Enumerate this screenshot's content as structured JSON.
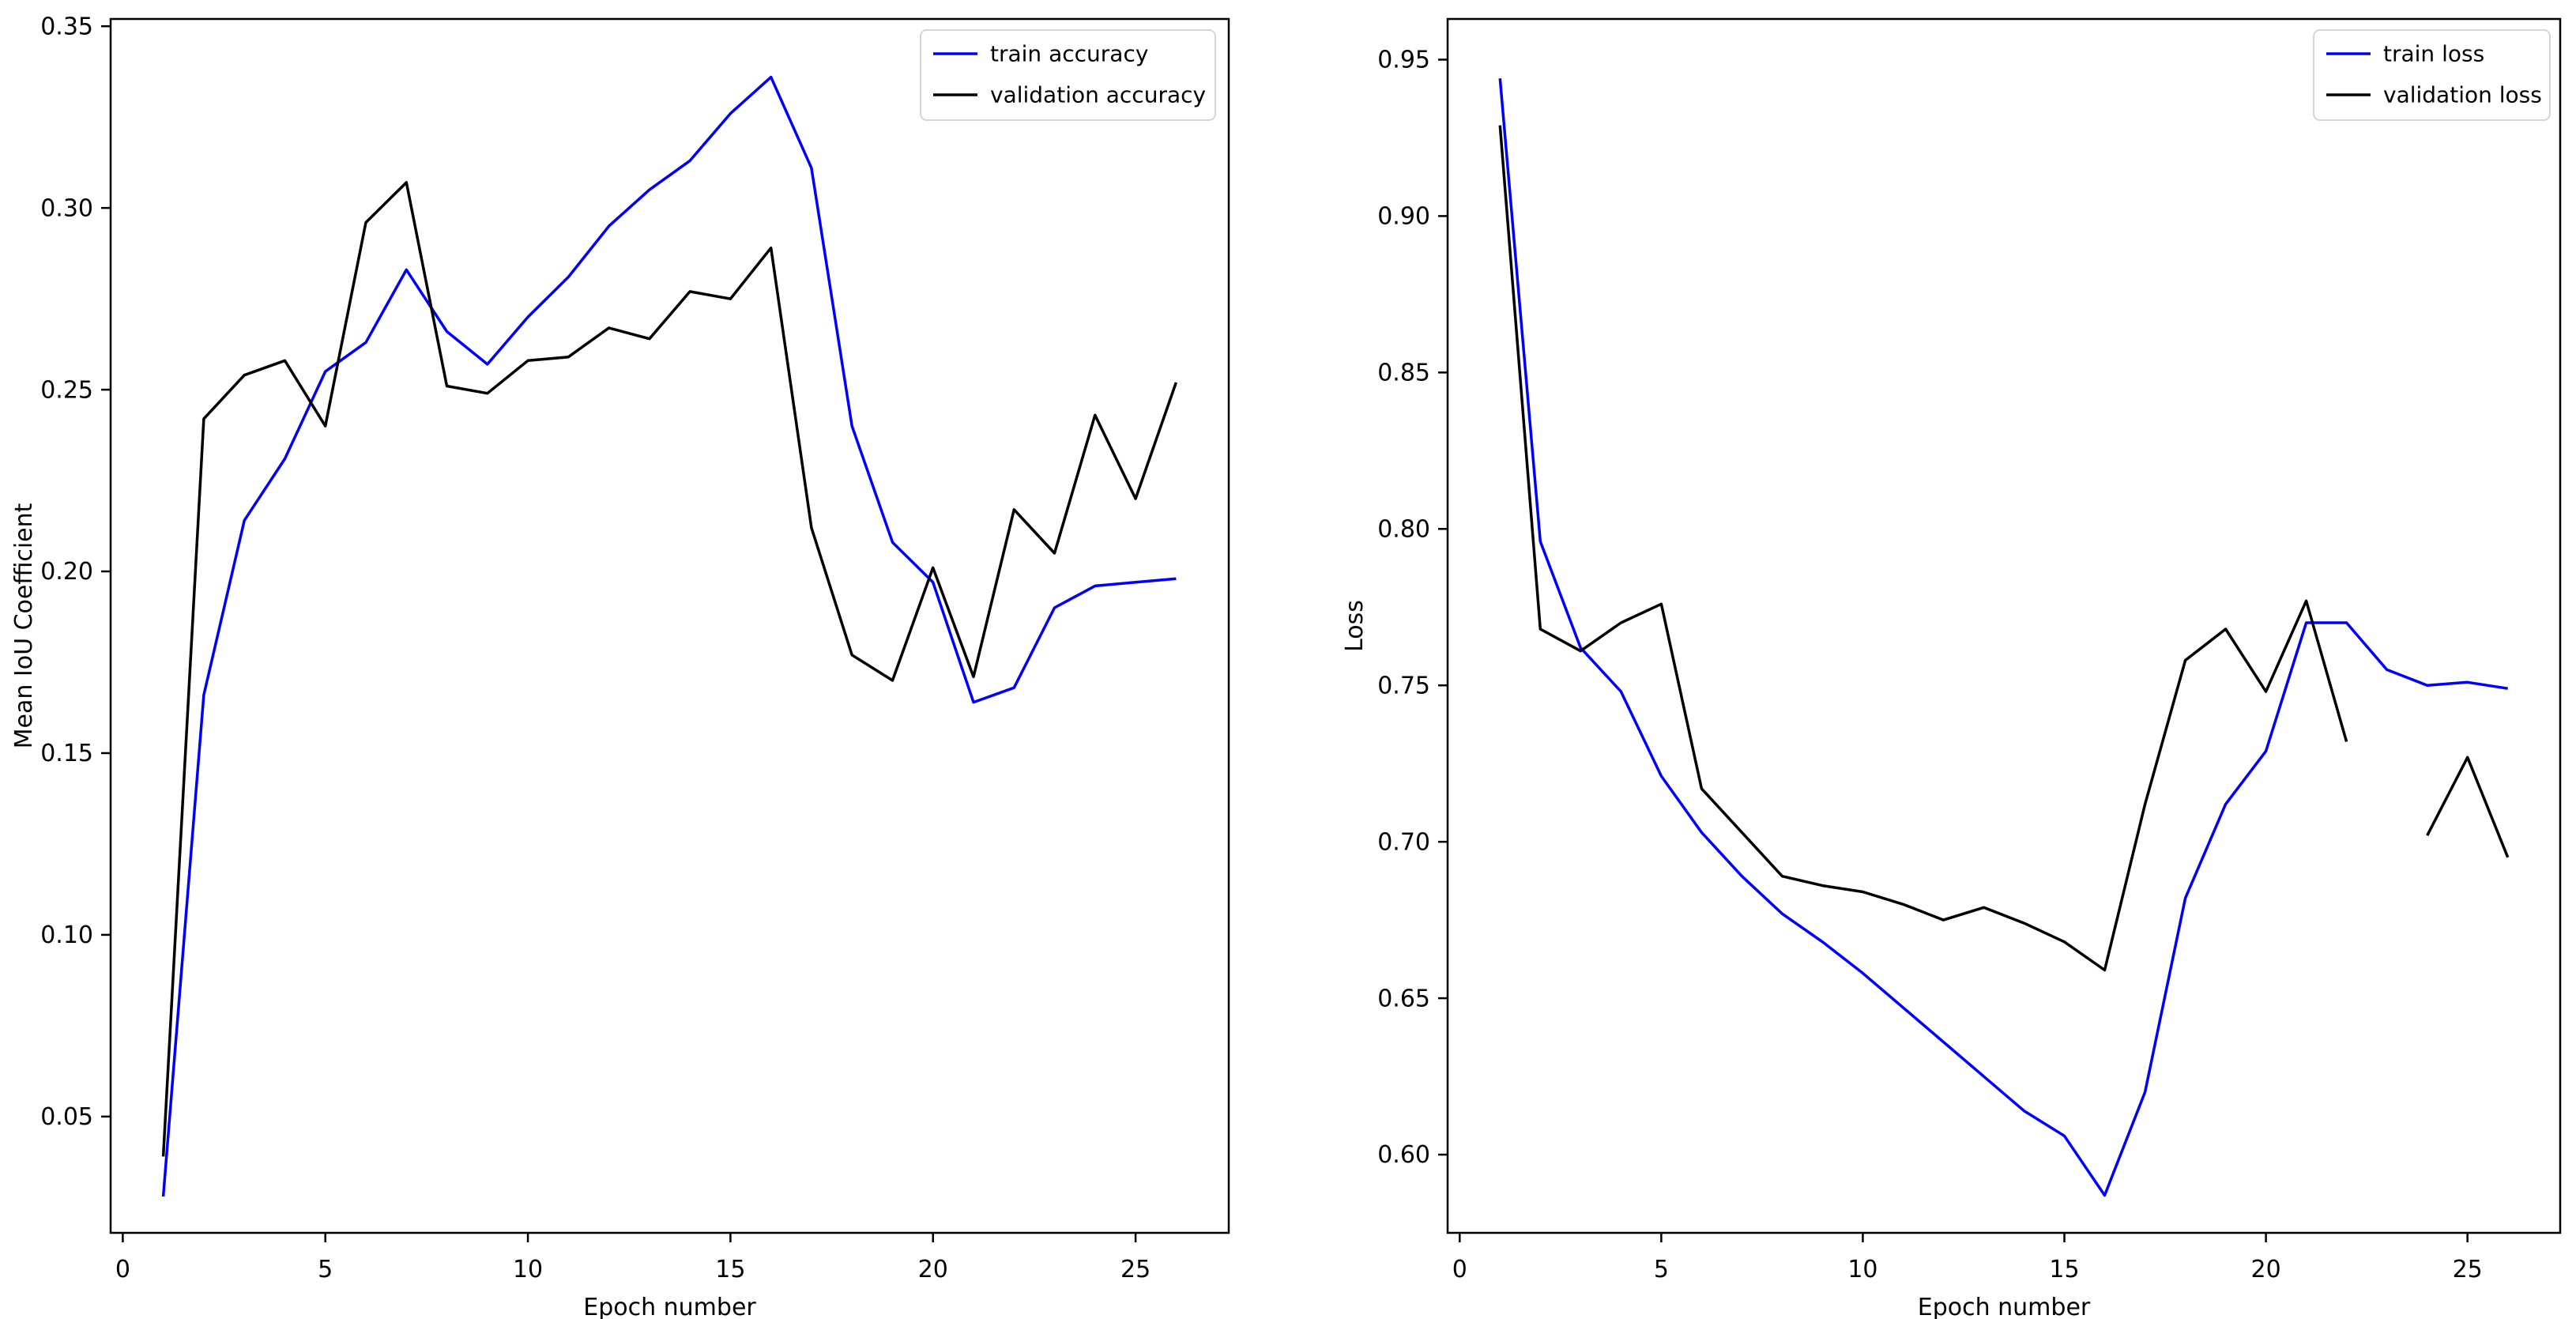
{
  "figure": {
    "background": "#ffffff",
    "axis_color": "#000000",
    "legend_border_color": "#d5d5d5",
    "legend_background": "#ffffff"
  },
  "chart_data": [
    {
      "type": "line",
      "title": "",
      "xlabel": "Epoch number",
      "ylabel": "Mean IoU Coefficient",
      "xlim": [
        -0.3,
        27.3
      ],
      "ylim": [
        0.018,
        0.352
      ],
      "grid": false,
      "legend_position": "upper right",
      "x_ticks": [
        0,
        5,
        10,
        15,
        20,
        25
      ],
      "x_tick_labels": [
        "0",
        "5",
        "10",
        "15",
        "20",
        "25"
      ],
      "y_ticks": [
        0.05,
        0.1,
        0.15,
        0.2,
        0.25,
        0.3,
        0.35
      ],
      "y_tick_labels": [
        "0.05",
        "0.10",
        "0.15",
        "0.20",
        "0.25",
        "0.30",
        "0.35"
      ],
      "x": [
        1,
        2,
        3,
        4,
        5,
        6,
        7,
        8,
        9,
        10,
        11,
        12,
        13,
        14,
        15,
        16,
        17,
        18,
        19,
        20,
        21,
        22,
        23,
        24,
        25,
        26
      ],
      "series": [
        {
          "name": "train accuracy",
          "color": "#0000ff",
          "values": [
            0.028,
            0.166,
            0.214,
            0.231,
            0.255,
            0.263,
            0.283,
            0.266,
            0.257,
            0.27,
            0.281,
            0.295,
            0.305,
            0.313,
            0.326,
            0.336,
            0.311,
            0.24,
            0.208,
            0.197,
            0.164,
            0.168,
            0.19,
            0.196,
            0.197,
            0.198
          ]
        },
        {
          "name": "validation accuracy",
          "color": "#000000",
          "values": [
            0.039,
            0.242,
            0.254,
            0.258,
            0.24,
            0.296,
            0.307,
            0.251,
            0.249,
            0.258,
            0.259,
            0.267,
            0.264,
            0.277,
            0.275,
            0.289,
            0.212,
            0.177,
            0.17,
            0.201,
            0.171,
            0.217,
            0.205,
            0.243,
            0.22,
            0.252
          ]
        }
      ]
    },
    {
      "type": "line",
      "title": "",
      "xlabel": "Epoch number",
      "ylabel": "Loss",
      "xlim": [
        -0.3,
        27.3
      ],
      "ylim": [
        0.575,
        0.963
      ],
      "grid": false,
      "legend_position": "upper right",
      "x_ticks": [
        0,
        5,
        10,
        15,
        20,
        25
      ],
      "x_tick_labels": [
        "0",
        "5",
        "10",
        "15",
        "20",
        "25"
      ],
      "y_ticks": [
        0.6,
        0.65,
        0.7,
        0.75,
        0.8,
        0.85,
        0.9,
        0.95
      ],
      "y_tick_labels": [
        "0.60",
        "0.65",
        "0.70",
        "0.75",
        "0.80",
        "0.85",
        "0.90",
        "0.95"
      ],
      "x": [
        1,
        2,
        3,
        4,
        5,
        6,
        7,
        8,
        9,
        10,
        11,
        12,
        13,
        14,
        15,
        16,
        17,
        18,
        19,
        20,
        21,
        22,
        23,
        24,
        25,
        26
      ],
      "series": [
        {
          "name": "train loss",
          "color": "#0000ff",
          "values": [
            0.944,
            0.796,
            0.762,
            0.748,
            0.721,
            0.703,
            0.689,
            0.677,
            0.668,
            0.658,
            0.647,
            0.636,
            0.625,
            0.614,
            0.606,
            0.587,
            0.62,
            0.682,
            0.712,
            0.729,
            0.77,
            0.77,
            0.755,
            0.75,
            0.751,
            0.749
          ]
        },
        {
          "name": "validation loss",
          "color": "#000000",
          "values": [
            0.929,
            0.768,
            0.761,
            0.77,
            0.776,
            0.717,
            0.703,
            0.689,
            0.686,
            0.684,
            0.68,
            0.675,
            0.679,
            0.674,
            0.668,
            0.659,
            0.712,
            0.758,
            0.768,
            0.748,
            0.777,
            0.732,
            null,
            0.702,
            0.727,
            0.695
          ]
        }
      ]
    }
  ]
}
